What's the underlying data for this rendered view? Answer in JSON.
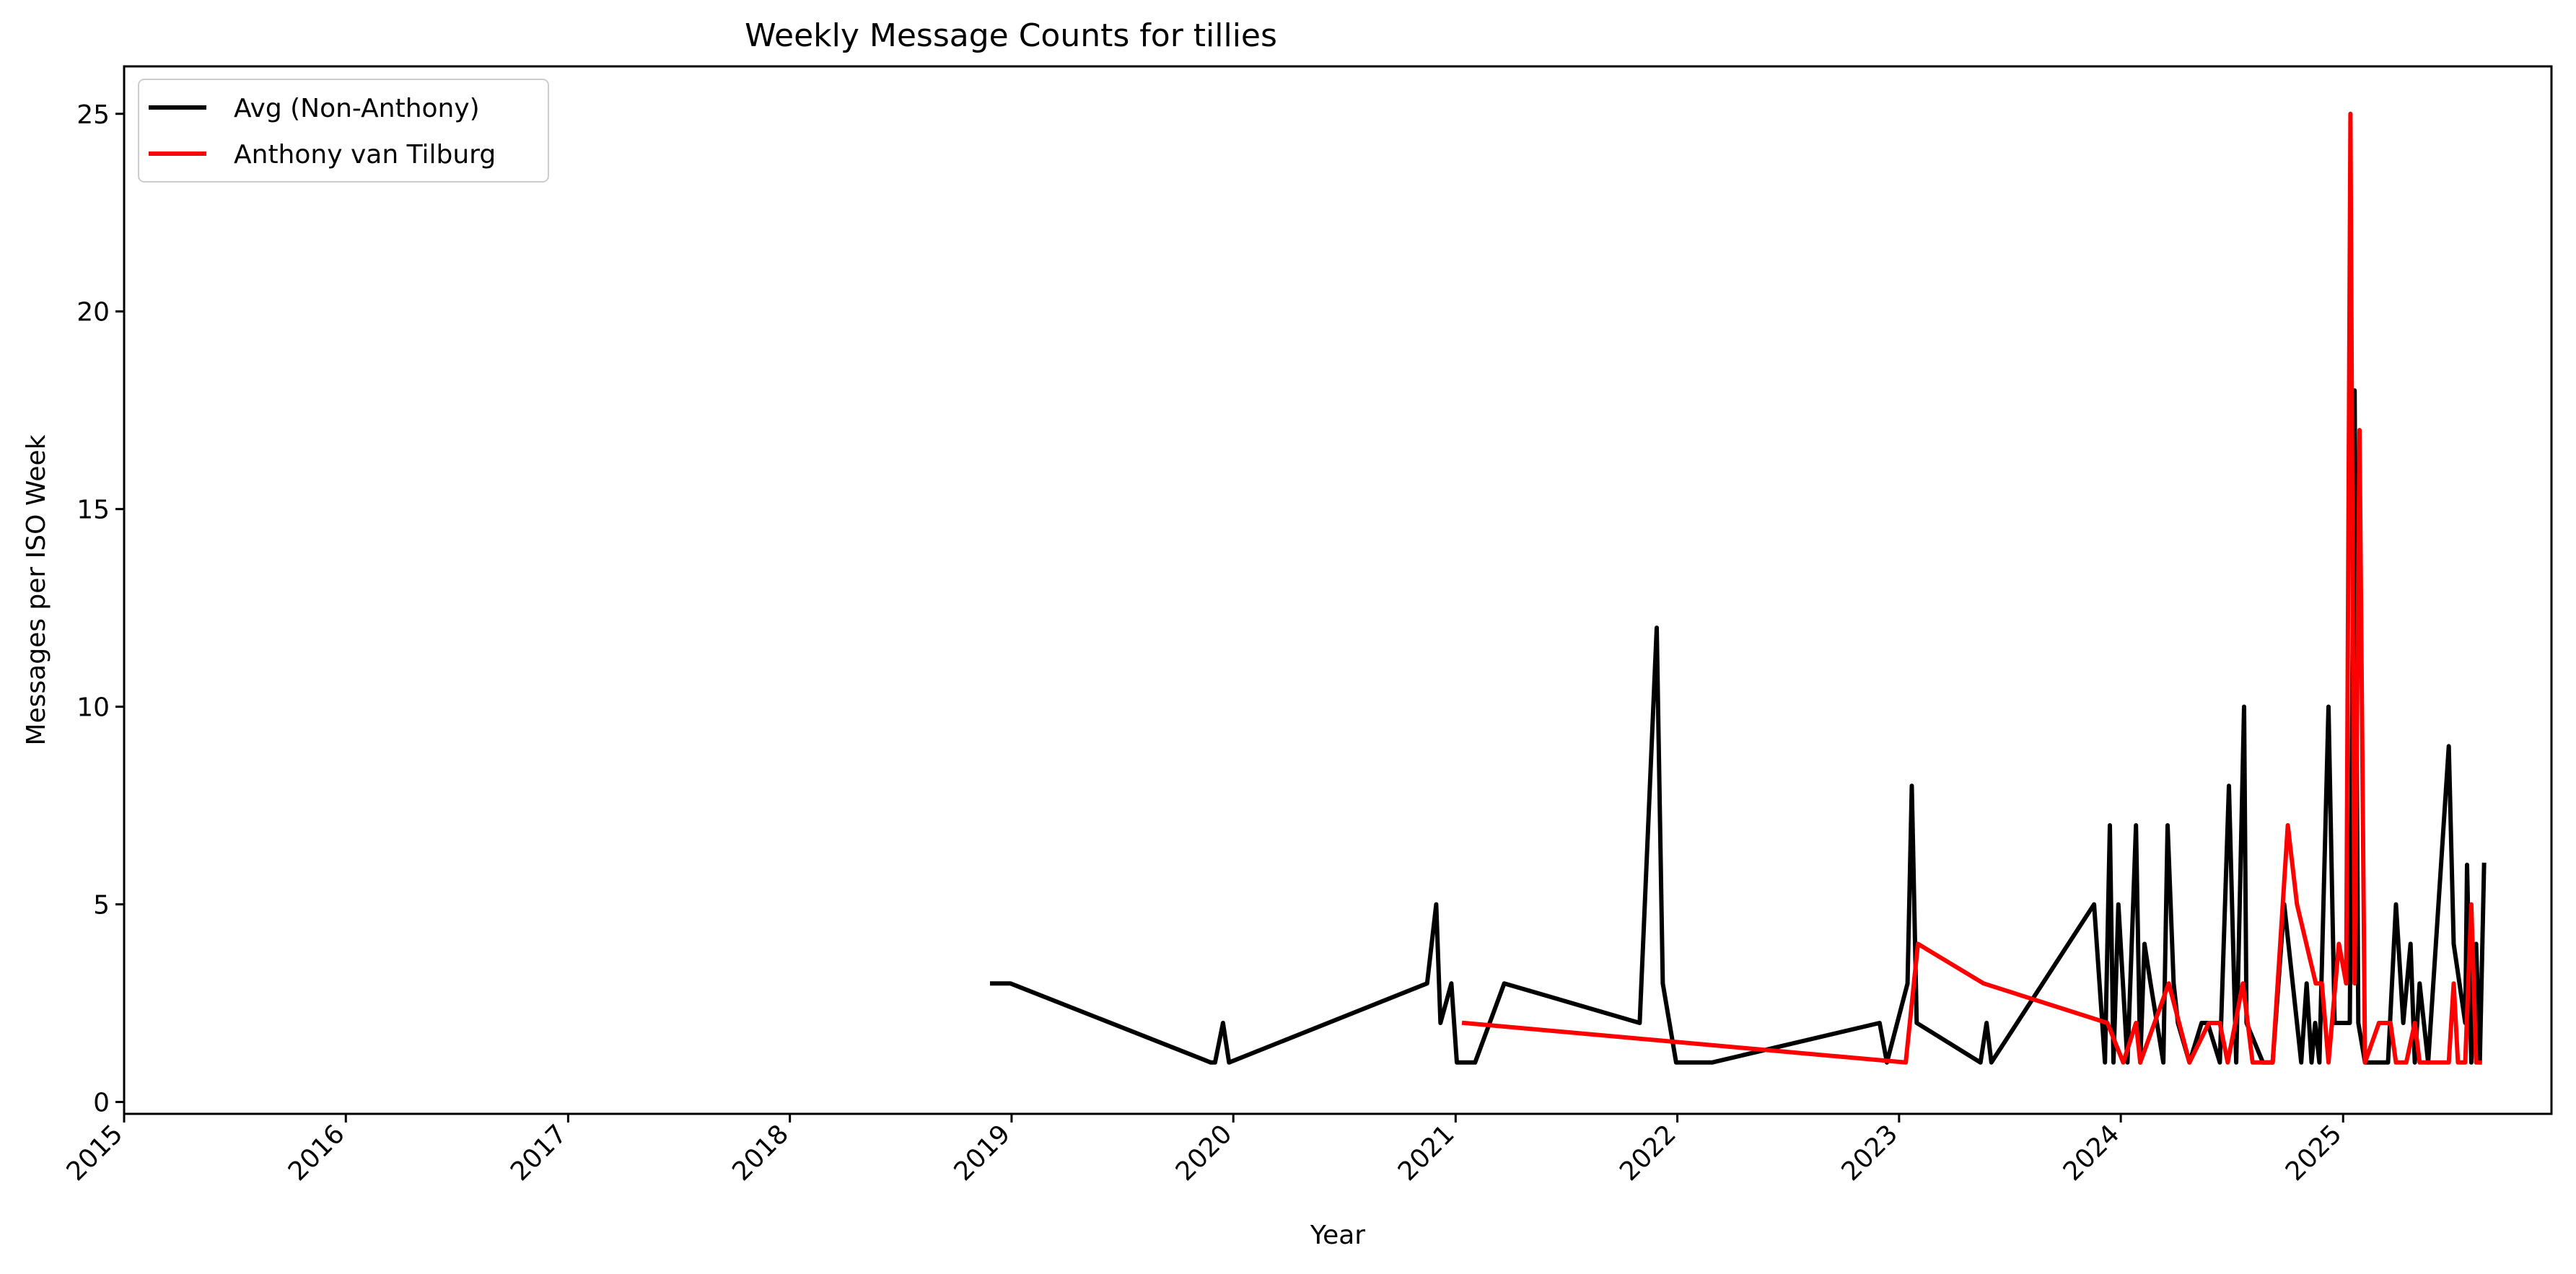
{
  "chart_data": {
    "type": "line",
    "title": "Weekly Message Counts for tillies",
    "xlabel": "Year",
    "ylabel": "Messages per ISO Week",
    "xlim": [
      "2015-01-01",
      "2025-12-10"
    ],
    "ylim": [
      -0.3,
      26.2
    ],
    "x_ticks": [
      "2015",
      "2016",
      "2017",
      "2018",
      "2019",
      "2020",
      "2021",
      "2022",
      "2023",
      "2024",
      "2025"
    ],
    "y_ticks": [
      0,
      5,
      10,
      15,
      20,
      25
    ],
    "grid": false,
    "legend": "top-left",
    "colors": {
      "Avg (Non-Anthony)": "#000000",
      "Anthony van Tilburg": "#ff0000"
    },
    "series": [
      {
        "name": "Avg (Non-Anthony)",
        "points": [
          [
            "2018-11-30",
            3
          ],
          [
            "2018-12-30",
            3
          ],
          [
            "2019-11-25",
            1
          ],
          [
            "2019-12-02",
            1
          ],
          [
            "2019-12-15",
            2
          ],
          [
            "2019-12-25",
            1
          ],
          [
            "2020-11-15",
            3
          ],
          [
            "2020-11-30",
            5
          ],
          [
            "2020-12-07",
            2
          ],
          [
            "2020-12-25",
            3
          ],
          [
            "2021-01-03",
            1
          ],
          [
            "2021-02-02",
            1
          ],
          [
            "2021-03-22",
            3
          ],
          [
            "2021-10-31",
            2
          ],
          [
            "2021-11-28",
            12
          ],
          [
            "2021-12-08",
            3
          ],
          [
            "2021-12-30",
            1
          ],
          [
            "2022-02-27",
            1
          ],
          [
            "2022-11-30",
            2
          ],
          [
            "2022-12-12",
            1
          ],
          [
            "2023-01-15",
            3
          ],
          [
            "2023-01-22",
            8
          ],
          [
            "2023-01-30",
            2
          ],
          [
            "2023-05-15",
            1
          ],
          [
            "2023-05-25",
            2
          ],
          [
            "2023-06-02",
            1
          ],
          [
            "2023-11-18",
            5
          ],
          [
            "2023-12-06",
            1
          ],
          [
            "2023-12-14",
            7
          ],
          [
            "2023-12-20",
            1
          ],
          [
            "2023-12-28",
            5
          ],
          [
            "2024-01-12",
            1
          ],
          [
            "2024-01-26",
            7
          ],
          [
            "2024-02-02",
            1
          ],
          [
            "2024-02-09",
            4
          ],
          [
            "2024-02-19",
            3
          ],
          [
            "2024-03-11",
            1
          ],
          [
            "2024-03-18",
            7
          ],
          [
            "2024-03-28",
            3
          ],
          [
            "2024-04-04",
            2
          ],
          [
            "2024-04-23",
            1
          ],
          [
            "2024-05-13",
            2
          ],
          [
            "2024-05-23",
            2
          ],
          [
            "2024-06-12",
            1
          ],
          [
            "2024-06-27",
            8
          ],
          [
            "2024-07-09",
            1
          ],
          [
            "2024-07-22",
            10
          ],
          [
            "2024-07-26",
            2
          ],
          [
            "2024-08-22",
            1
          ],
          [
            "2024-09-07",
            1
          ],
          [
            "2024-09-26",
            5
          ],
          [
            "2024-10-24",
            1
          ],
          [
            "2024-11-02",
            3
          ],
          [
            "2024-11-10",
            1
          ],
          [
            "2024-11-16",
            2
          ],
          [
            "2024-11-23",
            1
          ],
          [
            "2024-12-08",
            10
          ],
          [
            "2024-12-18",
            2
          ],
          [
            "2025-01-12",
            2
          ],
          [
            "2025-01-20",
            18
          ],
          [
            "2025-01-26",
            2
          ],
          [
            "2025-02-06",
            1
          ],
          [
            "2025-03-16",
            1
          ],
          [
            "2025-03-29",
            5
          ],
          [
            "2025-04-10",
            2
          ],
          [
            "2025-04-22",
            4
          ],
          [
            "2025-04-29",
            1
          ],
          [
            "2025-05-07",
            3
          ],
          [
            "2025-05-21",
            1
          ],
          [
            "2025-06-24",
            9
          ],
          [
            "2025-07-02",
            4
          ],
          [
            "2025-07-21",
            2
          ],
          [
            "2025-07-24",
            6
          ],
          [
            "2025-07-31",
            1
          ],
          [
            "2025-08-08",
            4
          ],
          [
            "2025-08-14",
            1
          ],
          [
            "2025-08-21",
            6
          ]
        ]
      },
      {
        "name": "Anthony van Tilburg",
        "points": [
          [
            "2021-01-15",
            2
          ],
          [
            "2023-01-12",
            1
          ],
          [
            "2023-02-01",
            4
          ],
          [
            "2023-05-20",
            3
          ],
          [
            "2023-12-10",
            2
          ],
          [
            "2024-01-05",
            1
          ],
          [
            "2024-01-26",
            2
          ],
          [
            "2024-02-02",
            1
          ],
          [
            "2024-03-20",
            3
          ],
          [
            "2024-04-23",
            1
          ],
          [
            "2024-05-25",
            2
          ],
          [
            "2024-06-12",
            2
          ],
          [
            "2024-06-25",
            1
          ],
          [
            "2024-07-20",
            3
          ],
          [
            "2024-08-05",
            1
          ],
          [
            "2024-09-07",
            1
          ],
          [
            "2024-10-02",
            7
          ],
          [
            "2024-10-17",
            5
          ],
          [
            "2024-11-17",
            3
          ],
          [
            "2024-11-27",
            3
          ],
          [
            "2024-12-08",
            1
          ],
          [
            "2024-12-25",
            4
          ],
          [
            "2025-01-06",
            3
          ],
          [
            "2025-01-13",
            25
          ],
          [
            "2025-01-20",
            3
          ],
          [
            "2025-01-28",
            17
          ],
          [
            "2025-02-06",
            1
          ],
          [
            "2025-03-01",
            2
          ],
          [
            "2025-03-20",
            2
          ],
          [
            "2025-03-29",
            1
          ],
          [
            "2025-04-15",
            1
          ],
          [
            "2025-04-29",
            2
          ],
          [
            "2025-05-07",
            1
          ],
          [
            "2025-06-24",
            1
          ],
          [
            "2025-07-02",
            3
          ],
          [
            "2025-07-09",
            1
          ],
          [
            "2025-07-21",
            1
          ],
          [
            "2025-07-31",
            5
          ],
          [
            "2025-08-08",
            1
          ],
          [
            "2025-08-14",
            1
          ]
        ]
      }
    ]
  }
}
